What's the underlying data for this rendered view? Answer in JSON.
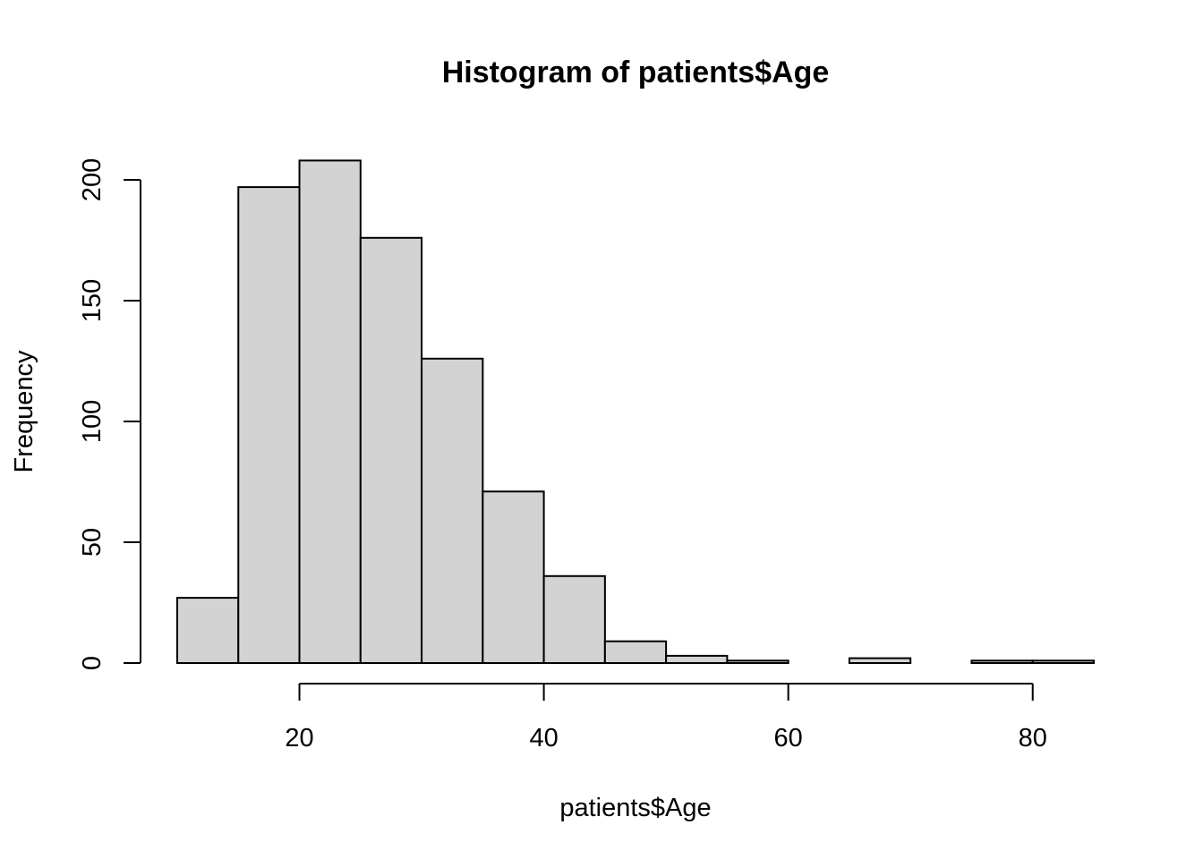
{
  "chart_data": {
    "type": "bar",
    "title": "Histogram of patients$Age",
    "xlabel": "patients$Age",
    "ylabel": "Frequency",
    "bar_color": "#d3d3d3",
    "border_color": "#000000",
    "bins": [
      {
        "start": 10,
        "end": 15,
        "count": 27
      },
      {
        "start": 15,
        "end": 20,
        "count": 197
      },
      {
        "start": 20,
        "end": 25,
        "count": 208
      },
      {
        "start": 25,
        "end": 30,
        "count": 176
      },
      {
        "start": 30,
        "end": 35,
        "count": 126
      },
      {
        "start": 35,
        "end": 40,
        "count": 71
      },
      {
        "start": 40,
        "end": 45,
        "count": 36
      },
      {
        "start": 45,
        "end": 50,
        "count": 9
      },
      {
        "start": 50,
        "end": 55,
        "count": 3
      },
      {
        "start": 55,
        "end": 60,
        "count": 1
      },
      {
        "start": 60,
        "end": 65,
        "count": 0
      },
      {
        "start": 65,
        "end": 70,
        "count": 2
      },
      {
        "start": 70,
        "end": 75,
        "count": 0
      },
      {
        "start": 75,
        "end": 80,
        "count": 1
      },
      {
        "start": 80,
        "end": 85,
        "count": 1
      }
    ],
    "x_ticks": [
      20,
      40,
      60,
      80
    ],
    "y_ticks": [
      0,
      50,
      100,
      150,
      200
    ],
    "xlim": [
      10,
      85
    ],
    "ylim": [
      0,
      208
    ],
    "grid": false,
    "legend": "none"
  }
}
